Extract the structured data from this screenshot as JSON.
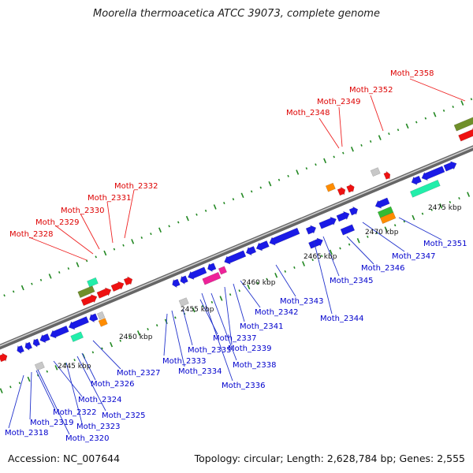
{
  "title": "Moorella thermoacetica ATCC 39073, complete genome",
  "footer": {
    "accession": "Accession: NC_007644",
    "summary": "Topology: circular; Length: 2,628,784 bp; Genes: 2,555"
  },
  "colors": {
    "top_strand_label": "#dd0000",
    "bottom_strand_label": "#0000cc",
    "gene_blue": "#1a1ae6",
    "gene_red": "#ee1111",
    "gene_olive": "#6f8f2a",
    "gene_cyan": "#22eeaa",
    "gene_magenta": "#ee2299",
    "gene_orange": "#ff8c00",
    "gene_grey": "#c8c8c8",
    "gene_green": "#33bb33",
    "gc_tick": "#228822",
    "backbone": "#888888"
  },
  "scale_labels": [
    {
      "id": "kbp-2445",
      "text": "2445 kbp"
    },
    {
      "id": "kbp-2450",
      "text": "2450 kbp"
    },
    {
      "id": "kbp-2455",
      "text": "2455 kbp"
    },
    {
      "id": "kbp-2460",
      "text": "2460 kbp"
    },
    {
      "id": "kbp-2465",
      "text": "2465 kbp"
    },
    {
      "id": "kbp-2470",
      "text": "2470 kbp"
    },
    {
      "id": "kbp-2475",
      "text": "2475 kbp"
    }
  ],
  "top_labels": [
    {
      "id": "moth-2328",
      "text": "Moth_2328"
    },
    {
      "id": "moth-2329",
      "text": "Moth_2329"
    },
    {
      "id": "moth-2330",
      "text": "Moth_2330"
    },
    {
      "id": "moth-2331",
      "text": "Moth_2331"
    },
    {
      "id": "moth-2332",
      "text": "Moth_2332"
    },
    {
      "id": "moth-2348",
      "text": "Moth_2348"
    },
    {
      "id": "moth-2349",
      "text": "Moth_2349"
    },
    {
      "id": "moth-2352",
      "text": "Moth_2352"
    },
    {
      "id": "moth-2358",
      "text": "Moth_2358"
    }
  ],
  "bottom_labels": [
    {
      "id": "moth-2318",
      "text": "Moth_2318"
    },
    {
      "id": "moth-2319",
      "text": "Moth_2319"
    },
    {
      "id": "moth-2320",
      "text": "Moth_2320"
    },
    {
      "id": "moth-2322",
      "text": "Moth_2322"
    },
    {
      "id": "moth-2323",
      "text": "Moth_2323"
    },
    {
      "id": "moth-2324",
      "text": "Moth_2324"
    },
    {
      "id": "moth-2325",
      "text": "Moth_2325"
    },
    {
      "id": "moth-2326",
      "text": "Moth_2326"
    },
    {
      "id": "moth-2327",
      "text": "Moth_2327"
    },
    {
      "id": "moth-2333",
      "text": "Moth_2333"
    },
    {
      "id": "moth-2334",
      "text": "Moth_2334"
    },
    {
      "id": "moth-2335",
      "text": "Moth_2335"
    },
    {
      "id": "moth-2336",
      "text": "Moth_2336"
    },
    {
      "id": "moth-2337",
      "text": "Moth_2337"
    },
    {
      "id": "moth-2338",
      "text": "Moth_2338"
    },
    {
      "id": "moth-2339",
      "text": "Moth_2339"
    },
    {
      "id": "moth-2341",
      "text": "Moth_2341"
    },
    {
      "id": "moth-2342",
      "text": "Moth_2342"
    },
    {
      "id": "moth-2343",
      "text": "Moth_2343"
    },
    {
      "id": "moth-2344",
      "text": "Moth_2344"
    },
    {
      "id": "moth-2345",
      "text": "Moth_2345"
    },
    {
      "id": "moth-2346",
      "text": "Moth_2346"
    },
    {
      "id": "moth-2347",
      "text": "Moth_2347"
    },
    {
      "id": "moth-2351",
      "text": "Moth_2351"
    }
  ]
}
